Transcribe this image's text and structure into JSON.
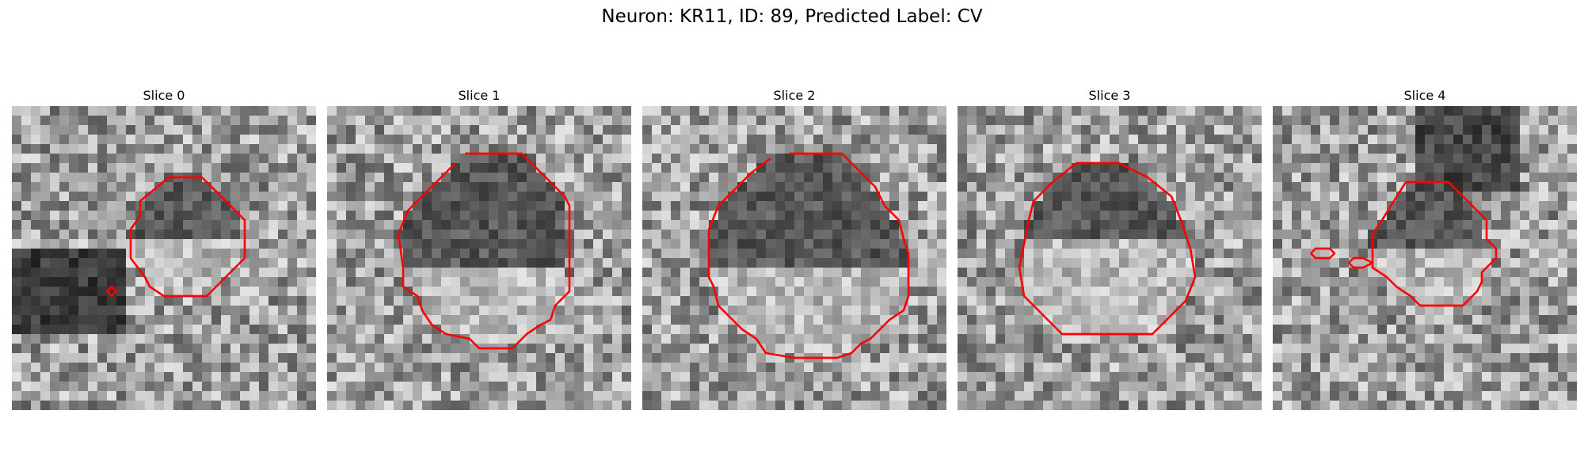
{
  "figure": {
    "title": "Neuron: KR11, ID: 89, Predicted Label: CV"
  },
  "panels": [
    {
      "title": "Slice 0",
      "image": "grayscale-noise-tile",
      "contour_color": "#ff0000",
      "contours": [
        [
          [
            16.5,
            7.5
          ],
          [
            20,
            7.5
          ],
          [
            24.5,
            12
          ],
          [
            24.5,
            16
          ],
          [
            20.5,
            20
          ],
          [
            16,
            20
          ],
          [
            14.5,
            19
          ],
          [
            14,
            18
          ],
          [
            12.5,
            16
          ],
          [
            12.5,
            13
          ],
          [
            13.5,
            11.5
          ],
          [
            13.5,
            10
          ],
          [
            16.5,
            7.5
          ]
        ],
        [
          [
            10,
            19.5
          ],
          [
            10.5,
            19
          ],
          [
            11,
            19.5
          ],
          [
            10.5,
            20
          ],
          [
            10,
            19.5
          ]
        ]
      ]
    },
    {
      "title": "Slice 1",
      "image": "grayscale-noise-tile",
      "contour_color": "#ff0000",
      "contours": [
        [
          [
            14.5,
            5
          ],
          [
            20.5,
            5
          ],
          [
            24,
            8.5
          ],
          [
            25,
            9.5
          ],
          [
            25.5,
            10.5
          ],
          [
            25.5,
            19.5
          ],
          [
            24,
            21
          ],
          [
            23.5,
            22.5
          ],
          [
            22.5,
            23
          ],
          [
            21,
            24
          ],
          [
            19.5,
            25.5
          ],
          [
            16,
            25.5
          ],
          [
            15,
            24.5
          ],
          [
            12.5,
            24
          ],
          [
            11,
            23
          ],
          [
            10,
            21.5
          ],
          [
            9.5,
            20
          ],
          [
            8,
            19
          ],
          [
            8,
            17
          ],
          [
            7.5,
            13.5
          ],
          [
            8.5,
            11
          ],
          [
            13.5,
            6
          ]
        ]
      ]
    },
    {
      "title": "Slice 2",
      "image": "grayscale-noise-tile",
      "contour_color": "#ff0000",
      "contours": [
        [
          [
            15.5,
            5
          ],
          [
            21,
            5
          ],
          [
            24.5,
            8.5
          ],
          [
            25.5,
            10.5
          ],
          [
            27,
            12
          ],
          [
            27.5,
            14
          ],
          [
            28,
            15.5
          ],
          [
            28,
            20
          ],
          [
            27.5,
            21.5
          ],
          [
            26,
            22.5
          ],
          [
            24,
            24.5
          ],
          [
            23,
            25
          ],
          [
            22,
            26
          ],
          [
            20.5,
            26.5
          ],
          [
            16,
            26.5
          ],
          [
            13,
            26
          ],
          [
            12,
            24.5
          ],
          [
            10.5,
            23.5
          ],
          [
            8,
            21
          ],
          [
            7.5,
            19
          ],
          [
            7,
            18
          ],
          [
            7,
            13
          ],
          [
            8,
            10.5
          ],
          [
            11.5,
            7
          ],
          [
            13.5,
            5.5
          ]
        ]
      ]
    },
    {
      "title": "Slice 3",
      "image": "grayscale-noise-tile",
      "contour_color": "#ff0000",
      "contours": [
        [
          [
            12.5,
            6
          ],
          [
            17,
            6
          ],
          [
            20,
            7.5
          ],
          [
            22.5,
            9.5
          ],
          [
            23.5,
            12
          ],
          [
            24.5,
            15
          ],
          [
            25,
            18
          ],
          [
            24,
            20.5
          ],
          [
            21.5,
            23
          ],
          [
            20.5,
            24
          ],
          [
            11,
            24
          ],
          [
            8.5,
            21.5
          ],
          [
            7,
            20
          ],
          [
            6.5,
            17
          ],
          [
            7.5,
            12
          ],
          [
            8,
            10
          ],
          [
            10,
            8
          ],
          [
            12.5,
            6
          ]
        ]
      ]
    },
    {
      "title": "Slice 4",
      "image": "grayscale-noise-tile",
      "contour_color": "#ff0000",
      "contours": [
        [
          [
            14,
            8
          ],
          [
            18.5,
            8
          ],
          [
            20,
            9.5
          ],
          [
            22.5,
            12
          ],
          [
            22.5,
            14
          ],
          [
            23.5,
            15
          ],
          [
            23.5,
            16
          ],
          [
            22,
            17.5
          ],
          [
            22,
            18.5
          ],
          [
            21.5,
            19.5
          ],
          [
            20,
            21
          ],
          [
            15.5,
            21
          ],
          [
            14.5,
            20
          ],
          [
            13,
            19
          ],
          [
            12,
            18
          ],
          [
            10.5,
            17
          ],
          [
            10.5,
            15
          ],
          [
            10.5,
            13.5
          ],
          [
            11.5,
            12
          ],
          [
            14,
            8
          ]
        ],
        [
          [
            4,
            15.5
          ],
          [
            4.5,
            15
          ],
          [
            6,
            15
          ],
          [
            6.5,
            15.5
          ],
          [
            6,
            16
          ],
          [
            4.5,
            16
          ],
          [
            4,
            15.5
          ]
        ],
        [
          [
            8,
            16.5
          ],
          [
            8.5,
            16
          ],
          [
            9.5,
            16
          ],
          [
            10.5,
            16.5
          ],
          [
            9.5,
            17
          ],
          [
            8.5,
            17
          ],
          [
            8,
            16.5
          ]
        ]
      ]
    }
  ]
}
